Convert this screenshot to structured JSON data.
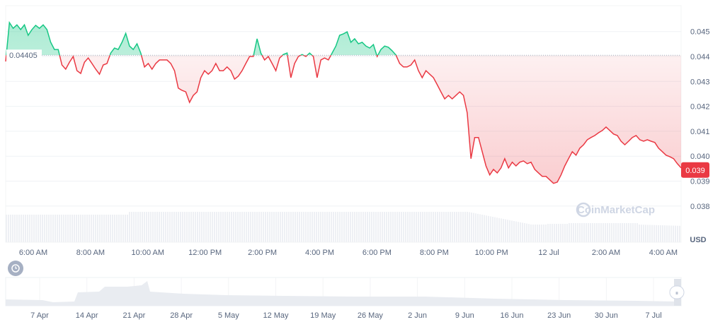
{
  "chart_data": {
    "type": "area",
    "reference_price": "0.04405",
    "current_price_label": "0.039",
    "currency_label": "USD",
    "watermark": "CoinMarketCap",
    "ylim": [
      0.0376,
      0.0458
    ],
    "y_ticks": [
      "0.045",
      "0.044",
      "0.043",
      "0.042",
      "0.041",
      "0.040",
      "0.039",
      "0.038"
    ],
    "y_tick_values": [
      0.045,
      0.044,
      0.043,
      0.042,
      0.041,
      0.04,
      0.039,
      0.038
    ],
    "x_ticks": [
      "6:00 AM",
      "8:00 AM",
      "10:00 AM",
      "12:00 PM",
      "2:00 PM",
      "4:00 PM",
      "6:00 PM",
      "8:00 PM",
      "10:00 PM",
      "12 Jul",
      "2:00 AM",
      "4:00 AM"
    ],
    "navigator_ticks": [
      "7 Apr",
      "14 Apr",
      "21 Apr",
      "28 Apr",
      "5 May",
      "12 May",
      "19 May",
      "26 May",
      "2 Jun",
      "9 Jun",
      "16 Jun",
      "23 Jun",
      "30 Jun",
      "7 Jul"
    ],
    "colors": {
      "up": "#16c784",
      "down": "#ea3943",
      "badge": "#ea3943",
      "grid": "#eff2f5"
    },
    "values": [
      0.0438,
      0.04536,
      0.04513,
      0.04527,
      0.04508,
      0.04527,
      0.04485,
      0.04508,
      0.04525,
      0.04513,
      0.04527,
      0.04508,
      0.04457,
      0.04428,
      0.04428,
      0.04366,
      0.04349,
      0.04377,
      0.044,
      0.04343,
      0.04332,
      0.04377,
      0.04394,
      0.04372,
      0.04349,
      0.04329,
      0.04366,
      0.04372,
      0.04414,
      0.04434,
      0.04428,
      0.04457,
      0.04493,
      0.04442,
      0.04428,
      0.04451,
      0.04414,
      0.04358,
      0.04372,
      0.04349,
      0.04372,
      0.04386,
      0.04386,
      0.04386,
      0.04372,
      0.04343,
      0.04273,
      0.04264,
      0.04258,
      0.04216,
      0.04244,
      0.04258,
      0.04315,
      0.04343,
      0.04329,
      0.04343,
      0.04372,
      0.04343,
      0.04343,
      0.04358,
      0.04343,
      0.04309,
      0.04321,
      0.04343,
      0.04372,
      0.044,
      0.044,
      0.04471,
      0.04414,
      0.04386,
      0.044,
      0.04372,
      0.04343,
      0.04394,
      0.04408,
      0.04414,
      0.04315,
      0.04372,
      0.044,
      0.04408,
      0.044,
      0.04414,
      0.044,
      0.04315,
      0.04386,
      0.04394,
      0.04386,
      0.04414,
      0.04442,
      0.04485,
      0.04491,
      0.04499,
      0.04457,
      0.04471,
      0.04451,
      0.04457,
      0.04442,
      0.04434,
      0.04448,
      0.044,
      0.04428,
      0.04442,
      0.04437,
      0.04423,
      0.04406,
      0.04372,
      0.04358,
      0.04358,
      0.04366,
      0.04386,
      0.04343,
      0.04315,
      0.04343,
      0.04329,
      0.04315,
      0.04287,
      0.04258,
      0.0423,
      0.04244,
      0.0423,
      0.04244,
      0.04258,
      0.04244,
      0.04174,
      0.0399,
      0.04075,
      0.04075,
      0.04018,
      0.03961,
      0.03925,
      0.03947,
      0.03933,
      0.03953,
      0.0399,
      0.03953,
      0.03976,
      0.03961,
      0.03976,
      0.03981,
      0.0397,
      0.03976,
      0.03947,
      0.03933,
      0.03919,
      0.03919,
      0.03905,
      0.03891,
      0.03896,
      0.03925,
      0.03961,
      0.0399,
      0.04018,
      0.04004,
      0.04032,
      0.04046,
      0.04066,
      0.04075,
      0.04083,
      0.04094,
      0.04103,
      0.04117,
      0.04103,
      0.04089,
      0.04083,
      0.0406,
      0.04046,
      0.0406,
      0.04075,
      0.04083,
      0.04066,
      0.0406,
      0.04066,
      0.0406,
      0.04055,
      0.04032,
      0.04018,
      0.04004,
      0.03998,
      0.0399,
      0.0397,
      0.03953
    ]
  }
}
